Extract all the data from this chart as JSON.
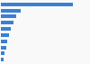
{
  "values": [
    36.8,
    10.2,
    7.8,
    6.3,
    5.0,
    3.8,
    3.1,
    2.5,
    1.8,
    1.1
  ],
  "bar_color": "#3a7fd4",
  "background_color": "#f9f9f9",
  "grid_color": "#e0e0e0",
  "xlim": [
    0,
    45
  ]
}
